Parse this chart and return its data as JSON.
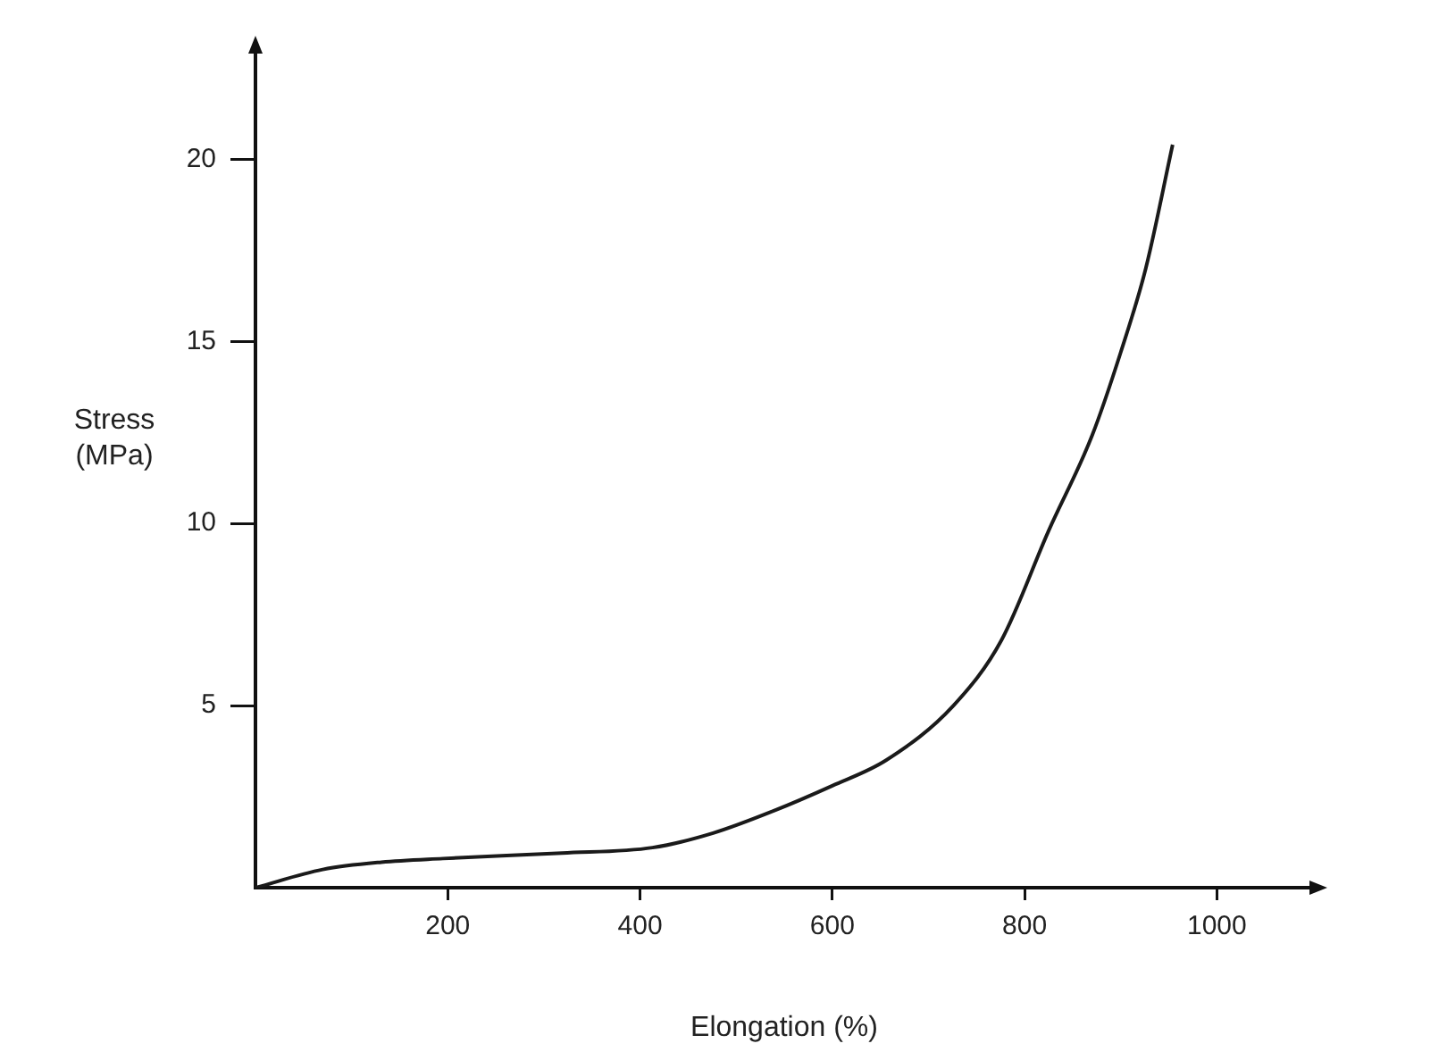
{
  "chart_data": {
    "type": "line",
    "xlabel": "Elongation (%)",
    "ylabel": "Stress (MPa)",
    "x": [
      0,
      70,
      131,
      195,
      319,
      413,
      476,
      538,
      600,
      656,
      726,
      776,
      825,
      870,
      900,
      926,
      954
    ],
    "series": [
      {
        "color": "#1a1a1a",
        "values": [
          0,
          0.5,
          0.7,
          0.8,
          0.95,
          1.1,
          1.5,
          2.1,
          2.8,
          3.5,
          5.0,
          6.8,
          9.8,
          12.4,
          14.7,
          17.0,
          20.4
        ]
      }
    ],
    "xlim": [
      0,
      1100
    ],
    "xticks": [
      200,
      400,
      600,
      800,
      1000
    ],
    "ylim": [
      0,
      23
    ],
    "yticks": [
      5,
      10,
      15,
      20
    ],
    "grid": false,
    "legend": false,
    "marker": "none",
    "line_style": "solid"
  }
}
